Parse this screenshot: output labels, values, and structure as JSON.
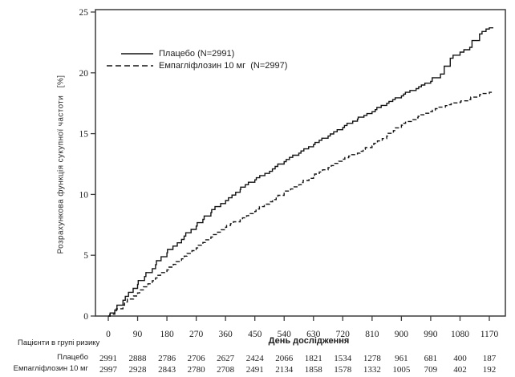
{
  "colors": {
    "line": "#131313",
    "axis": "#3c3c3c",
    "text": "#1d1d1d"
  },
  "chart_data": {
    "type": "line",
    "title": "",
    "xlabel": "День дослідження",
    "ylabel": "Розрахункова функція сукупної частоти   [%]",
    "xlim": [
      0,
      1170
    ],
    "ylim": [
      0,
      25
    ],
    "grid": false,
    "legend_position": "upper-left-inside",
    "x_ticks": [
      0,
      90,
      180,
      270,
      360,
      450,
      540,
      630,
      720,
      810,
      900,
      990,
      1080,
      1170
    ],
    "y_ticks": [
      0,
      5,
      10,
      15,
      20,
      25
    ],
    "series": [
      {
        "id": "placebo",
        "name": "Плацебо (N=2991)",
        "line_style": "solid",
        "points": [
          [
            0,
            0
          ],
          [
            20,
            0.5
          ],
          [
            45,
            1.3
          ],
          [
            90,
            2.6
          ],
          [
            135,
            3.9
          ],
          [
            180,
            5.2
          ],
          [
            225,
            6.3
          ],
          [
            270,
            7.4
          ],
          [
            315,
            8.5
          ],
          [
            360,
            9.5
          ],
          [
            405,
            10.4
          ],
          [
            450,
            11.2
          ],
          [
            495,
            11.9
          ],
          [
            540,
            12.7
          ],
          [
            585,
            13.4
          ],
          [
            630,
            14.1
          ],
          [
            675,
            14.8
          ],
          [
            720,
            15.5
          ],
          [
            765,
            16.2
          ],
          [
            810,
            16.8
          ],
          [
            855,
            17.5
          ],
          [
            900,
            18.1
          ],
          [
            945,
            18.7
          ],
          [
            990,
            19.3
          ],
          [
            1020,
            19.9
          ],
          [
            1050,
            21.2
          ],
          [
            1080,
            21.7
          ],
          [
            1110,
            22.1
          ],
          [
            1140,
            23.2
          ],
          [
            1160,
            23.6
          ],
          [
            1170,
            23.7
          ]
        ]
      },
      {
        "id": "empagliflozin-10mg",
        "name": "Емпагліфлозин 10 мг  (N=2997)",
        "line_style": "dashed",
        "points": [
          [
            0,
            0
          ],
          [
            20,
            0.3
          ],
          [
            45,
            0.9
          ],
          [
            90,
            1.9
          ],
          [
            135,
            2.9
          ],
          [
            180,
            3.8
          ],
          [
            225,
            4.7
          ],
          [
            270,
            5.6
          ],
          [
            315,
            6.5
          ],
          [
            360,
            7.3
          ],
          [
            405,
            7.9
          ],
          [
            450,
            8.6
          ],
          [
            495,
            9.4
          ],
          [
            540,
            10.1
          ],
          [
            585,
            10.8
          ],
          [
            630,
            11.5
          ],
          [
            675,
            12.2
          ],
          [
            720,
            12.9
          ],
          [
            765,
            13.4
          ],
          [
            810,
            14.0
          ],
          [
            855,
            14.8
          ],
          [
            900,
            15.7
          ],
          [
            945,
            16.3
          ],
          [
            990,
            16.8
          ],
          [
            1035,
            17.3
          ],
          [
            1080,
            17.6
          ],
          [
            1110,
            17.8
          ],
          [
            1140,
            18.2
          ],
          [
            1170,
            18.4
          ]
        ]
      }
    ],
    "at_risk_table": {
      "title": "Пацієнти в групі ризику",
      "rows": [
        {
          "label": "Плацебо",
          "values": [
            2991,
            2888,
            2786,
            2706,
            2627,
            2424,
            2066,
            1821,
            1534,
            1278,
            961,
            681,
            400,
            187
          ]
        },
        {
          "label": "Емпагліфлозин 10 мг",
          "values": [
            2997,
            2928,
            2843,
            2780,
            2708,
            2491,
            2134,
            1858,
            1578,
            1332,
            1005,
            709,
            402,
            192
          ]
        }
      ]
    }
  }
}
